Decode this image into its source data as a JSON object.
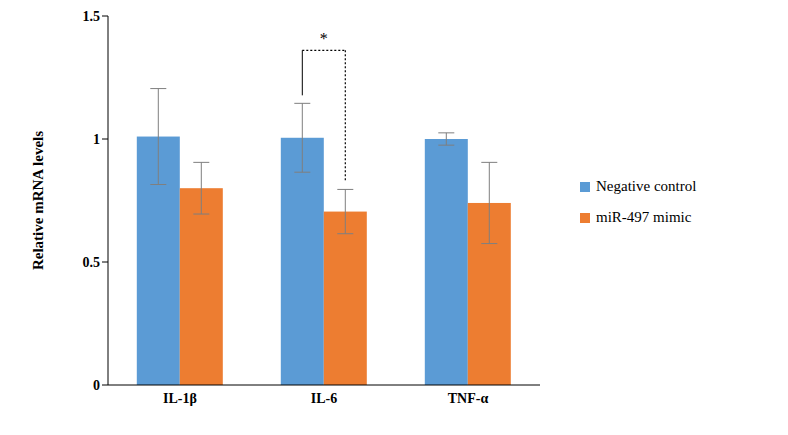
{
  "chart_data": {
    "type": "bar",
    "y_label": "Relative mRNA levels",
    "categories": [
      "IL-1β",
      "IL-6",
      "TNF-α"
    ],
    "series": [
      {
        "name": "Negative control",
        "color": "#5b9bd5",
        "values": [
          1.01,
          1.005,
          1.0
        ],
        "errors": [
          0.195,
          0.14,
          0.025
        ]
      },
      {
        "name": "miR-497 mimic",
        "color": "#ed7d31",
        "values": [
          0.8,
          0.705,
          0.74
        ],
        "errors": [
          0.105,
          0.09,
          0.165
        ]
      }
    ],
    "ylim": [
      0,
      1.5
    ],
    "yticks": [
      0,
      0.5,
      1,
      1.5
    ],
    "grid": false,
    "legend": "right",
    "annotations": [
      {
        "text": "*",
        "category": "IL-6"
      }
    ]
  }
}
